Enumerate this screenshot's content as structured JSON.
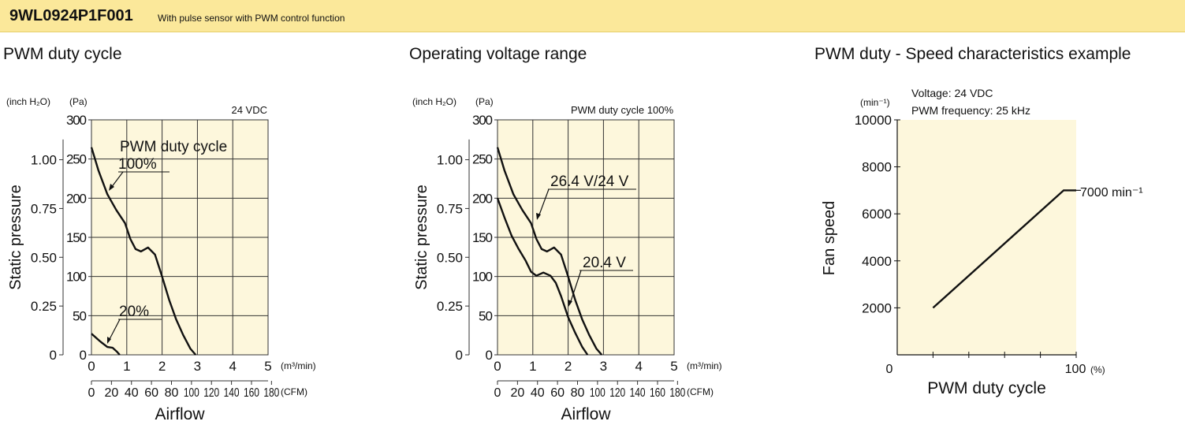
{
  "header": {
    "model": "9WL0924P1F001",
    "subtitle": "With pulse sensor with PWM control function"
  },
  "colors": {
    "header_bg": "#fbe89a",
    "plot_bg": "#fdf7dc",
    "grid": "#333333"
  },
  "chart_data": [
    {
      "type": "line",
      "title": "PWM duty cycle",
      "annotation": "24 VDC",
      "xlabel": "Airflow",
      "ylabel": "Static pressure",
      "x_unit": "(m³/min)",
      "x2_unit": "(CFM)",
      "y_unit": "(Pa)",
      "y2_unit": "(inch H₂O)",
      "xlim": [
        0,
        5
      ],
      "ylim": [
        0,
        300
      ],
      "x_ticks": [
        "0",
        "1",
        "2",
        "3",
        "4",
        "5"
      ],
      "y_ticks": [
        "0",
        "50",
        "100",
        "150",
        "200",
        "250",
        "300"
      ],
      "x2_ticks": [
        "0",
        "20",
        "40",
        "60",
        "80",
        "100",
        "120",
        "140",
        "160",
        "180"
      ],
      "y2_ticks": [
        "0",
        "0.25",
        "0.50",
        "0.75",
        "1.00"
      ],
      "grid": true,
      "legend_header": "PWM duty cycle",
      "series": [
        {
          "name": "100%",
          "x": [
            0,
            0.2,
            0.45,
            0.7,
            0.95,
            1.1,
            1.25,
            1.4,
            1.6,
            1.8,
            2.0,
            2.2,
            2.4,
            2.6,
            2.8,
            2.95
          ],
          "y": [
            265,
            235,
            205,
            185,
            168,
            148,
            135,
            132,
            137,
            128,
            100,
            70,
            45,
            25,
            8,
            0
          ]
        },
        {
          "name": "20%",
          "x": [
            0,
            0.25,
            0.45,
            0.6,
            0.72,
            0.8
          ],
          "y": [
            27,
            17,
            10,
            9,
            4,
            0
          ]
        }
      ]
    },
    {
      "type": "line",
      "title": "Operating voltage range",
      "annotation": "PWM duty cycle 100%",
      "xlabel": "Airflow",
      "ylabel": "Static pressure",
      "x_unit": "(m³/min)",
      "x2_unit": "(CFM)",
      "y_unit": "(Pa)",
      "y2_unit": "(inch H₂O)",
      "xlim": [
        0,
        5
      ],
      "ylim": [
        0,
        300
      ],
      "x_ticks": [
        "0",
        "1",
        "2",
        "3",
        "4",
        "5"
      ],
      "y_ticks": [
        "0",
        "50",
        "100",
        "150",
        "200",
        "250",
        "300"
      ],
      "x2_ticks": [
        "0",
        "20",
        "40",
        "60",
        "80",
        "100",
        "120",
        "140",
        "160",
        "180"
      ],
      "y2_ticks": [
        "0",
        "0.25",
        "0.50",
        "0.75",
        "1.00"
      ],
      "grid": true,
      "series": [
        {
          "name": "26.4 V/24 V",
          "x": [
            0,
            0.2,
            0.45,
            0.7,
            0.95,
            1.1,
            1.25,
            1.4,
            1.6,
            1.8,
            2.0,
            2.2,
            2.4,
            2.6,
            2.8,
            2.95
          ],
          "y": [
            265,
            235,
            205,
            185,
            168,
            148,
            135,
            132,
            137,
            128,
            100,
            70,
            45,
            25,
            8,
            0
          ]
        },
        {
          "name": "20.4 V",
          "x": [
            0,
            0.2,
            0.4,
            0.6,
            0.8,
            0.95,
            1.1,
            1.3,
            1.5,
            1.65,
            1.8,
            2.0,
            2.2,
            2.4,
            2.55
          ],
          "y": [
            200,
            175,
            152,
            135,
            120,
            106,
            101,
            105,
            101,
            92,
            75,
            48,
            28,
            10,
            0
          ]
        }
      ]
    },
    {
      "type": "line",
      "title": "PWM duty - Speed characteristics example",
      "annotations": [
        "Voltage: 24 VDC",
        "PWM frequency: 25 kHz"
      ],
      "xlabel": "PWM duty cycle",
      "ylabel": "Fan speed",
      "x_unit": "(%)",
      "y_unit": "(min⁻¹)",
      "xlim": [
        0,
        100
      ],
      "ylim": [
        0,
        10000
      ],
      "x_ticks": [
        "0",
        "100"
      ],
      "y_ticks": [
        "2000",
        "4000",
        "6000",
        "8000",
        "10000"
      ],
      "grid": false,
      "series": [
        {
          "name": "",
          "x": [
            20,
            93,
            100
          ],
          "y": [
            2000,
            7000,
            7000
          ]
        }
      ],
      "end_label": "7000 min⁻¹"
    }
  ]
}
